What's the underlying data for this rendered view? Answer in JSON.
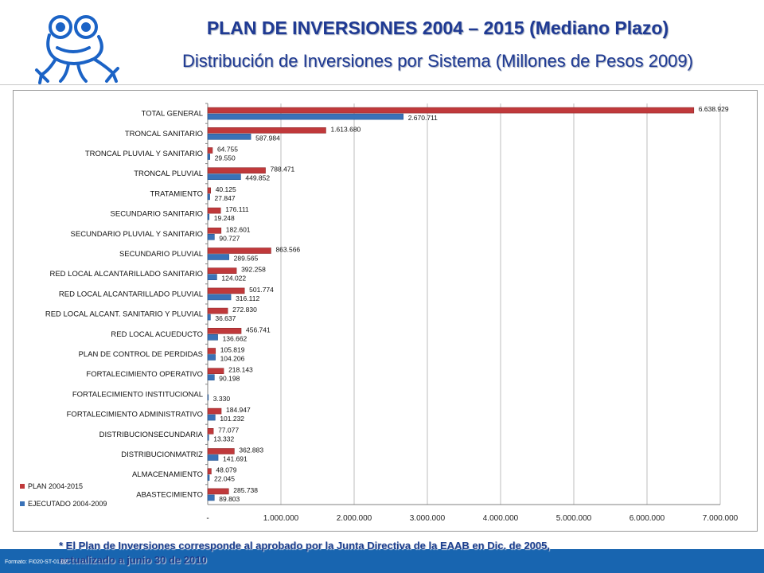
{
  "header": {
    "title": "PLAN DE INVERSIONES 2004 – 2015 (Mediano Plazo)",
    "subtitle": "Distribución de Inversiones por Sistema (Millones de Pesos 2009)"
  },
  "footer": {
    "note_line1": "* El Plan de Inversiones corresponde al aprobado por la Junta Directiva de la EAAB en Dic. de 2005,",
    "note_line2": "actualizado a junio 30 de 2010",
    "formato": "Formato: FI020-ST-01.02"
  },
  "colors": {
    "plan": "#c0393b",
    "ejecutado": "#3a72b8",
    "title": "#1f3a93",
    "footer_bar": "#1865b0"
  },
  "chart_data": {
    "type": "bar",
    "orientation": "horizontal",
    "categories": [
      "TOTAL GENERAL",
      "TRONCAL SANITARIO",
      "TRONCAL PLUVIAL Y SANITARIO",
      "TRONCAL PLUVIAL",
      "TRATAMIENTO",
      "SECUNDARIO SANITARIO",
      "SECUNDARIO PLUVIAL Y SANITARIO",
      "SECUNDARIO PLUVIAL",
      "RED LOCAL ALCANTARILLADO SANITARIO",
      "RED LOCAL ALCANTARILLADO PLUVIAL",
      "RED LOCAL ALCANT. SANITARIO Y PLUVIAL",
      "RED LOCAL ACUEDUCTO",
      "PLAN DE CONTROL DE PERDIDAS",
      "FORTALECIMIENTO OPERATIVO",
      "FORTALECIMIENTO INSTITUCIONAL",
      "FORTALECIMIENTO ADMINISTRATIVO",
      "DISTRIBUCIONSECUNDARIA",
      "DISTRIBUCIONMATRIZ",
      "ALMACENAMIENTO",
      "ABASTECIMIENTO"
    ],
    "series": [
      {
        "name": "PLAN 2004-2015",
        "color": "#c0393b",
        "values": [
          6638929,
          1613680,
          64755,
          788471,
          40125,
          176111,
          182601,
          863566,
          392258,
          501774,
          272830,
          456741,
          105819,
          218143,
          null,
          184947,
          77077,
          362883,
          48079,
          285738
        ],
        "labels": [
          "6.638.929",
          "1.613.680",
          "64.755",
          "788.471",
          "40.125",
          "176.111",
          "182.601",
          "863.566",
          "392.258",
          "501.774",
          "272.830",
          "456.741",
          "105.819",
          "218.143",
          "",
          "184.947",
          "77.077",
          "362.883",
          "48.079",
          "285.738"
        ]
      },
      {
        "name": "EJECUTADO 2004-2009",
        "color": "#3a72b8",
        "values": [
          2670711,
          587984,
          29550,
          449852,
          27847,
          19248,
          90727,
          289565,
          124022,
          316112,
          36637,
          136662,
          104206,
          90198,
          3330,
          101232,
          13332,
          141691,
          22045,
          89803
        ],
        "labels": [
          "2.670.711",
          "587.984",
          "29.550",
          "449.852",
          "27.847",
          "19.248",
          "90.727",
          "289.565",
          "124.022",
          "316.112",
          "36.637",
          "136.662",
          "104.206",
          "90.198",
          "3.330",
          "101.232",
          "13.332",
          "141.691",
          "22.045",
          "89.803"
        ]
      }
    ],
    "xlim": [
      0,
      7000000
    ],
    "x_ticks": [
      0,
      1000000,
      2000000,
      3000000,
      4000000,
      5000000,
      6000000,
      7000000
    ],
    "x_tick_labels": [
      "-",
      "1.000.000",
      "2.000.000",
      "3.000.000",
      "4.000.000",
      "5.000.000",
      "6.000.000",
      "7.000.000"
    ],
    "grid": "vertical",
    "legend": "bottom-left"
  }
}
